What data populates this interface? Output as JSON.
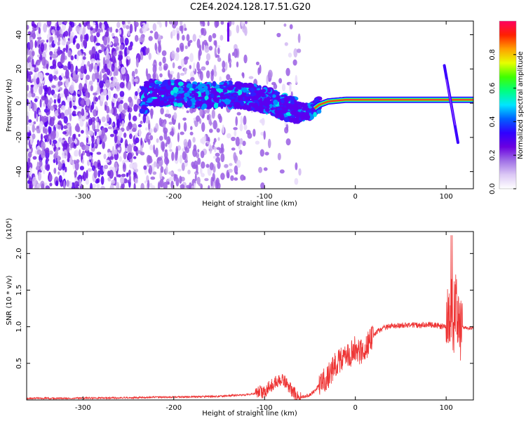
{
  "title": "C2E4.2024.128.17.51.G20",
  "chart_data": [
    {
      "type": "heatmap",
      "title": "C2E4.2024.128.17.51.G20",
      "xlabel": "Height of straight line (km)",
      "ylabel": "Frequency (Hz)",
      "xlim": [
        -362,
        130
      ],
      "ylim": [
        -50,
        48
      ],
      "xticks": [
        -300,
        -200,
        -100,
        0,
        100
      ],
      "yticks": [
        -40,
        -20,
        0,
        20,
        40
      ],
      "colorbar": {
        "label": "Normalized spectral amplitude",
        "range": [
          0,
          1
        ],
        "ticks": [
          "0.0",
          "0.2",
          "0.4",
          "0.6",
          "0.8"
        ],
        "colors": [
          "#ffffff",
          "#dcc8f5",
          "#a070e6",
          "#6a00e0",
          "#3000ff",
          "#0060ff",
          "#00e6ff",
          "#00ff80",
          "#40ff00",
          "#e6ff00",
          "#ffa000",
          "#ff2000",
          "#ff0060"
        ]
      },
      "ridge": [
        {
          "x": -230,
          "f": 6
        },
        {
          "x": -200,
          "f": 6
        },
        {
          "x": -170,
          "f": 4
        },
        {
          "x": -140,
          "f": 5
        },
        {
          "x": -120,
          "f": 4
        },
        {
          "x": -100,
          "f": 2
        },
        {
          "x": -80,
          "f": -2
        },
        {
          "x": -60,
          "f": -5
        },
        {
          "x": -50,
          "f": -5
        },
        {
          "x": -40,
          "f": -1
        },
        {
          "x": -30,
          "f": 1
        },
        {
          "x": -10,
          "f": 2
        },
        {
          "x": 0,
          "f": 2
        },
        {
          "x": 50,
          "f": 2
        },
        {
          "x": 100,
          "f": 2
        },
        {
          "x": 130,
          "f": 2
        }
      ],
      "chirp": [
        {
          "x": 98,
          "f": 22
        },
        {
          "x": 113,
          "f": -23
        }
      ],
      "grid": false,
      "legend": "colorbar-right"
    },
    {
      "type": "line",
      "xlabel": "Height of straight line (km)",
      "ylabel": "SNR (10 * v/v)",
      "multiplier": "(x10⁴)",
      "xlim": [
        -362,
        130
      ],
      "ylim": [
        0,
        2.3
      ],
      "xticks": [
        -300,
        -200,
        -100,
        0,
        100
      ],
      "yticks": [
        0.5,
        1.0,
        1.5,
        2.0
      ],
      "series": [
        {
          "color": "#ee3333",
          "x": [
            -362,
            -250,
            -200,
            -150,
            -120,
            -110,
            -100,
            -95,
            -90,
            -85,
            -80,
            -75,
            -70,
            -65,
            -60,
            -55,
            -50,
            -45,
            -40,
            -35,
            -30,
            -25,
            -20,
            -15,
            -10,
            -5,
            0,
            5,
            10,
            15,
            20,
            25,
            30,
            40,
            50,
            60,
            70,
            80,
            90,
            95,
            100,
            103,
            106,
            108,
            110,
            112,
            115,
            120,
            125,
            130
          ],
          "values": [
            0.02,
            0.03,
            0.04,
            0.05,
            0.07,
            0.09,
            0.12,
            0.18,
            0.22,
            0.27,
            0.26,
            0.22,
            0.12,
            0.05,
            0.04,
            0.05,
            0.07,
            0.12,
            0.2,
            0.26,
            0.32,
            0.42,
            0.52,
            0.55,
            0.58,
            0.62,
            0.72,
            0.64,
            0.68,
            0.78,
            0.88,
            0.94,
            0.98,
            1.01,
            1.02,
            1.03,
            1.02,
            1.03,
            1.02,
            1.0,
            1.02,
            1.1,
            1.3,
            0.9,
            1.4,
            1.2,
            1.0,
            0.99,
            0.98,
            0.98
          ]
        }
      ],
      "grid": false
    }
  ]
}
